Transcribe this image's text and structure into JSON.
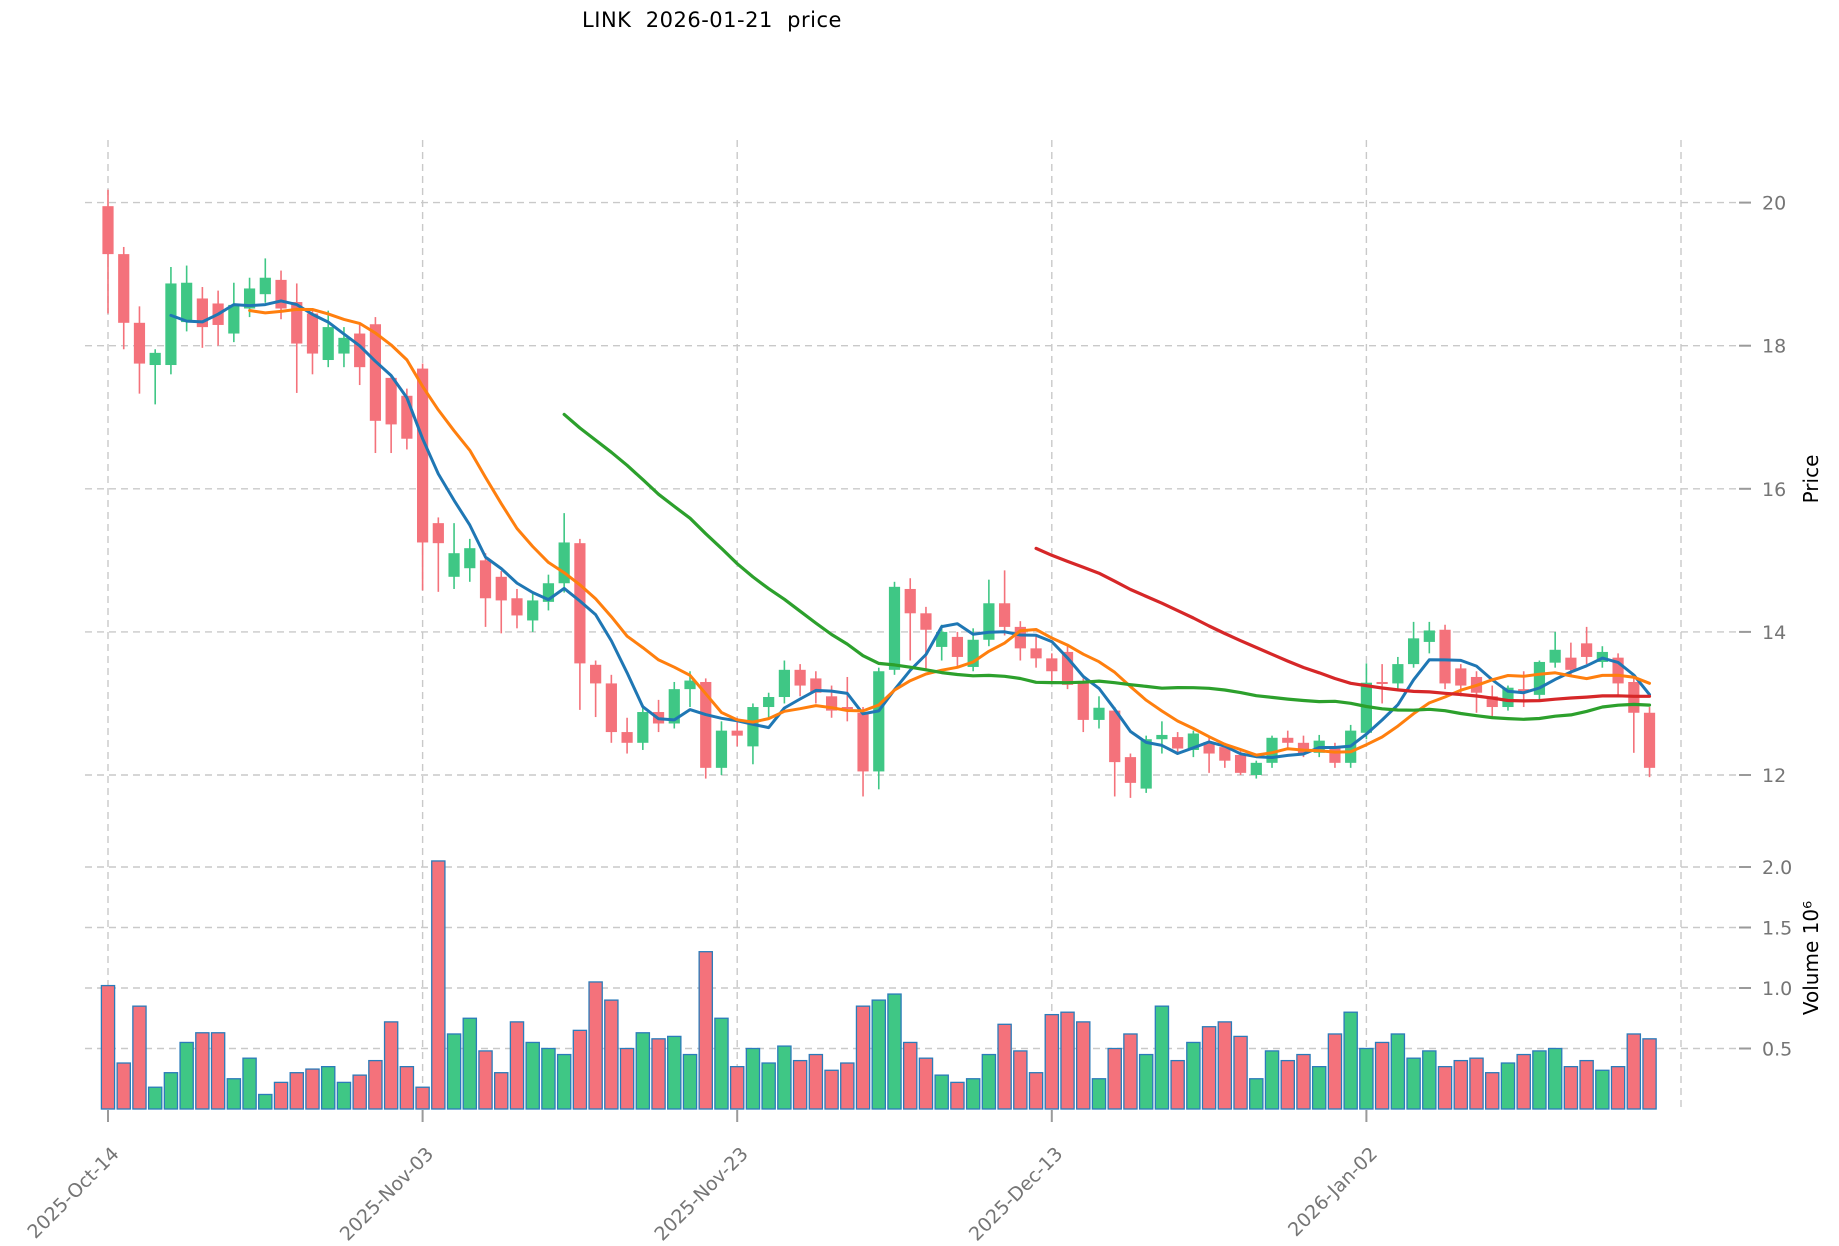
{
  "title": "LINK  2026-01-21  price",
  "chart_data": {
    "type": "candlestick+volume",
    "title": "LINK  2026-01-21  price",
    "price_axis": {
      "label": "Price",
      "ticks": [
        12,
        14,
        16,
        18,
        20
      ],
      "side": "right"
    },
    "volume_axis": {
      "label": "Volume  10⁶",
      "ticks": [
        0.5,
        1.0,
        1.5,
        2.0
      ],
      "side": "right",
      "unit": 1000000
    },
    "x_axis": {
      "tick_labels": [
        "2025-Oct-14",
        "2025-Nov-03",
        "2025-Nov-23",
        "2025-Dec-13",
        "2026-Jan-02"
      ],
      "tick_indices": [
        0,
        20,
        40,
        60,
        80
      ],
      "extra_gridline_index": 100,
      "rotation_deg": -45
    },
    "grid": {
      "on": true,
      "style": "dashed",
      "color": "#c9c9c9"
    },
    "legend_position": "none",
    "colors": {
      "up": "#3fc785",
      "down": "#f4727b",
      "volume_edge": "#2b7bba",
      "ma_short": "#1f77b4",
      "ma_mid": "#ff7f0e",
      "ma_long": "#2ca02c",
      "ma_xlong": "#d62728",
      "tick_text": "#757575",
      "axis_label_text": "#000000"
    },
    "moving_averages": [
      {
        "name": "SMA-5",
        "period": 5,
        "color": "#1f77b4",
        "width": 3
      },
      {
        "name": "SMA-10",
        "period": 10,
        "color": "#ff7f0e",
        "width": 3
      },
      {
        "name": "SMA-30",
        "period": 30,
        "color": "#2ca02c",
        "width": 3.2
      },
      {
        "name": "SMA-60",
        "period": 60,
        "color": "#d62728",
        "width": 3.2
      }
    ],
    "ylim_price": [
      11.4,
      20.9
    ],
    "ylim_volume": [
      0,
      2.4
    ],
    "ohlc": [
      [
        19.95,
        20.18,
        18.45,
        19.28
      ],
      [
        19.28,
        19.38,
        17.95,
        18.32
      ],
      [
        18.32,
        18.55,
        17.33,
        17.75
      ],
      [
        17.73,
        17.95,
        17.18,
        17.9
      ],
      [
        17.73,
        19.1,
        17.6,
        18.87
      ],
      [
        18.33,
        19.12,
        18.2,
        18.88
      ],
      [
        18.66,
        18.82,
        17.97,
        18.26
      ],
      [
        18.59,
        18.77,
        18.0,
        18.29
      ],
      [
        18.17,
        18.88,
        18.05,
        18.57
      ],
      [
        18.52,
        18.95,
        18.4,
        18.8
      ],
      [
        18.72,
        19.22,
        18.6,
        18.95
      ],
      [
        18.92,
        19.05,
        18.37,
        18.52
      ],
      [
        18.61,
        18.87,
        17.34,
        18.03
      ],
      [
        18.45,
        18.5,
        17.6,
        17.89
      ],
      [
        17.8,
        18.49,
        17.7,
        18.26
      ],
      [
        17.89,
        18.26,
        17.7,
        18.11
      ],
      [
        18.17,
        18.3,
        17.45,
        17.7
      ],
      [
        18.3,
        18.4,
        16.5,
        16.95
      ],
      [
        17.55,
        17.6,
        16.5,
        16.9
      ],
      [
        17.3,
        17.4,
        16.55,
        16.7
      ],
      [
        17.68,
        17.75,
        14.58,
        15.25
      ],
      [
        15.52,
        15.6,
        14.56,
        15.24
      ],
      [
        14.77,
        15.52,
        14.6,
        15.1
      ],
      [
        14.89,
        15.3,
        14.7,
        15.17
      ],
      [
        15.0,
        15.1,
        14.07,
        14.47
      ],
      [
        14.77,
        14.85,
        13.98,
        14.44
      ],
      [
        14.47,
        14.6,
        14.05,
        14.23
      ],
      [
        14.16,
        14.55,
        14.0,
        14.44
      ],
      [
        14.42,
        14.8,
        14.3,
        14.68
      ],
      [
        14.68,
        15.66,
        14.55,
        15.25
      ],
      [
        15.24,
        15.3,
        12.91,
        13.56
      ],
      [
        13.54,
        13.6,
        12.81,
        13.28
      ],
      [
        13.28,
        13.4,
        12.45,
        12.6
      ],
      [
        12.6,
        12.8,
        12.3,
        12.45
      ],
      [
        12.45,
        12.98,
        12.35,
        12.88
      ],
      [
        12.88,
        13.05,
        12.6,
        12.72
      ],
      [
        12.72,
        13.3,
        12.65,
        13.2
      ],
      [
        13.2,
        13.45,
        12.95,
        13.32
      ],
      [
        13.3,
        13.35,
        11.95,
        12.1
      ],
      [
        12.1,
        12.75,
        12.0,
        12.62
      ],
      [
        12.62,
        12.8,
        12.4,
        12.55
      ],
      [
        12.4,
        13.0,
        12.15,
        12.95
      ],
      [
        12.95,
        13.15,
        12.8,
        13.09
      ],
      [
        13.09,
        13.6,
        13.0,
        13.47
      ],
      [
        13.47,
        13.55,
        13.1,
        13.25
      ],
      [
        13.35,
        13.45,
        13.0,
        13.15
      ],
      [
        13.1,
        13.25,
        12.8,
        12.9
      ],
      [
        12.95,
        13.37,
        12.75,
        12.93
      ],
      [
        12.87,
        12.95,
        11.7,
        12.05
      ],
      [
        12.05,
        13.5,
        11.8,
        13.45
      ],
      [
        13.47,
        14.7,
        13.4,
        14.63
      ],
      [
        14.6,
        14.75,
        13.6,
        14.26
      ],
      [
        14.26,
        14.35,
        13.47,
        14.03
      ],
      [
        13.79,
        14.1,
        13.6,
        14.0
      ],
      [
        13.93,
        14.0,
        13.5,
        13.65
      ],
      [
        13.51,
        14.05,
        13.45,
        13.89
      ],
      [
        13.89,
        14.73,
        13.8,
        14.4
      ],
      [
        14.4,
        14.86,
        13.95,
        14.07
      ],
      [
        14.07,
        14.15,
        13.6,
        13.77
      ],
      [
        13.77,
        13.95,
        13.5,
        13.63
      ],
      [
        13.63,
        13.7,
        13.3,
        13.45
      ],
      [
        13.72,
        13.8,
        13.2,
        13.26
      ],
      [
        13.3,
        13.35,
        12.6,
        12.77
      ],
      [
        12.77,
        13.1,
        12.65,
        12.94
      ],
      [
        12.9,
        12.95,
        11.7,
        12.18
      ],
      [
        12.25,
        12.3,
        11.68,
        11.89
      ],
      [
        11.81,
        12.55,
        11.75,
        12.5
      ],
      [
        12.5,
        12.75,
        12.3,
        12.56
      ],
      [
        12.53,
        12.6,
        12.3,
        12.37
      ],
      [
        12.35,
        12.62,
        12.25,
        12.58
      ],
      [
        12.46,
        12.55,
        12.03,
        12.3
      ],
      [
        12.39,
        12.45,
        12.1,
        12.2
      ],
      [
        12.28,
        12.35,
        12.0,
        12.03
      ],
      [
        12.0,
        12.2,
        11.95,
        12.17
      ],
      [
        12.17,
        12.55,
        12.1,
        12.52
      ],
      [
        12.52,
        12.62,
        12.35,
        12.45
      ],
      [
        12.45,
        12.55,
        12.25,
        12.3
      ],
      [
        12.31,
        12.56,
        12.25,
        12.48
      ],
      [
        12.38,
        12.45,
        12.1,
        12.17
      ],
      [
        12.17,
        12.7,
        12.1,
        12.62
      ],
      [
        12.59,
        13.56,
        12.5,
        13.29
      ],
      [
        13.3,
        13.55,
        13.0,
        13.28
      ],
      [
        13.28,
        13.65,
        13.2,
        13.55
      ],
      [
        13.55,
        14.14,
        13.5,
        13.91
      ],
      [
        13.86,
        14.14,
        13.7,
        14.02
      ],
      [
        14.03,
        14.1,
        13.2,
        13.28
      ],
      [
        13.49,
        13.55,
        13.1,
        13.25
      ],
      [
        13.37,
        13.45,
        12.87,
        13.15
      ],
      [
        13.1,
        13.25,
        12.8,
        12.95
      ],
      [
        12.95,
        13.25,
        12.9,
        13.22
      ],
      [
        13.2,
        13.45,
        12.95,
        13.18
      ],
      [
        13.12,
        13.6,
        13.05,
        13.58
      ],
      [
        13.57,
        14.0,
        13.5,
        13.75
      ],
      [
        13.64,
        13.85,
        13.4,
        13.47
      ],
      [
        13.84,
        14.07,
        13.55,
        13.65
      ],
      [
        13.58,
        13.8,
        13.5,
        13.72
      ],
      [
        13.64,
        13.7,
        13.1,
        13.28
      ],
      [
        13.3,
        13.35,
        12.31,
        12.87
      ],
      [
        12.87,
        12.95,
        11.97,
        12.1
      ]
    ],
    "volume_millions": [
      1.02,
      0.38,
      0.85,
      0.18,
      0.3,
      0.55,
      0.63,
      0.63,
      0.25,
      0.42,
      0.12,
      0.22,
      0.3,
      0.33,
      0.35,
      0.22,
      0.28,
      0.4,
      0.72,
      0.35,
      0.18,
      2.05,
      0.62,
      0.75,
      0.48,
      0.3,
      0.72,
      0.55,
      0.5,
      0.45,
      0.65,
      1.05,
      0.9,
      0.5,
      0.63,
      0.58,
      0.6,
      0.45,
      1.3,
      0.75,
      0.35,
      0.5,
      0.38,
      0.52,
      0.4,
      0.45,
      0.32,
      0.38,
      0.85,
      0.9,
      0.95,
      0.55,
      0.42,
      0.28,
      0.22,
      0.25,
      0.45,
      0.7,
      0.48,
      0.3,
      0.78,
      0.8,
      0.72,
      0.25,
      0.5,
      0.62,
      0.45,
      0.85,
      0.4,
      0.55,
      0.68,
      0.72,
      0.6,
      0.25,
      0.48,
      0.4,
      0.45,
      0.35,
      0.62,
      0.8,
      0.5,
      0.55,
      0.62,
      0.42,
      0.48,
      0.35,
      0.4,
      0.42,
      0.3,
      0.38,
      0.45,
      0.48,
      0.5,
      0.35,
      0.4,
      0.32,
      0.35,
      0.62,
      0.58
    ]
  }
}
